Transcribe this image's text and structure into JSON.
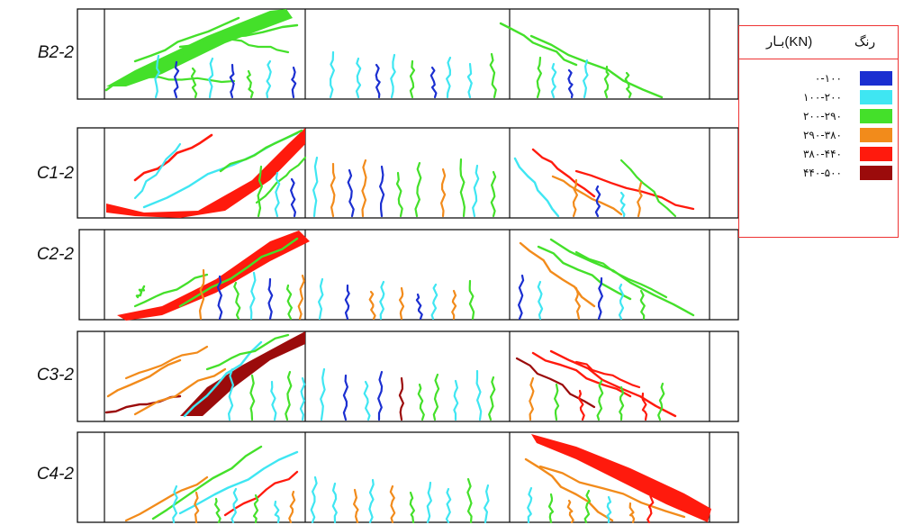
{
  "colors": {
    "c0": "#1b2fd1",
    "c1": "#3fe6f2",
    "c2": "#44e02a",
    "c3": "#f28b1b",
    "c4": "#ff1a0d",
    "c5": "#9b0b0b"
  },
  "beams": [
    {
      "label": "B2-2"
    },
    {
      "label": "C1-2"
    },
    {
      "label": "C2-2"
    },
    {
      "label": "C3-2"
    },
    {
      "label": "C4-2"
    }
  ],
  "legend": {
    "load_header": "بـار(KN)",
    "color_header": "رنگ",
    "rows": [
      {
        "range": "۰-۱۰۰",
        "color": "#1b2fd1"
      },
      {
        "range": "۱۰۰-۲۰۰",
        "color": "#3fe6f2"
      },
      {
        "range": "۲۰۰-۲۹۰",
        "color": "#44e02a"
      },
      {
        "range": "۲۹۰-۳۸۰",
        "color": "#f28b1b"
      },
      {
        "range": "۳۸۰-۴۴۰",
        "color": "#ff1a0d"
      },
      {
        "range": "۴۴۰-۵۰۰",
        "color": "#9b0b0b"
      }
    ]
  }
}
